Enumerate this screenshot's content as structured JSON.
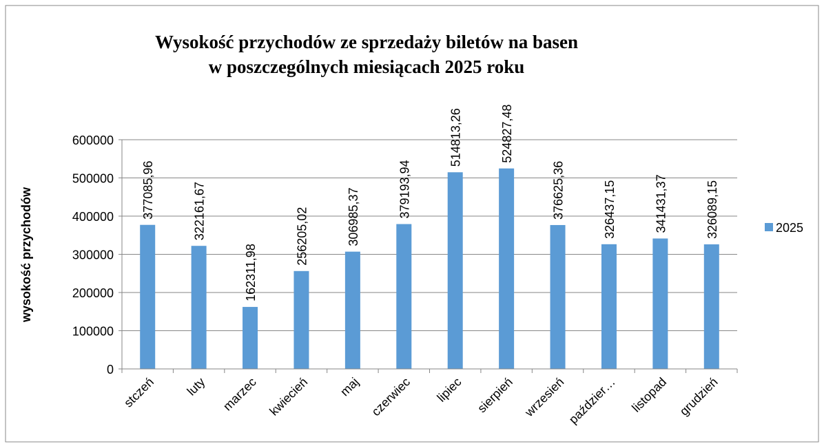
{
  "chart_data": {
    "type": "bar",
    "title": [
      "Wysokość przychodów ze sprzedaży biletów na basen",
      "w poszczególnych miesiącach 2025 roku"
    ],
    "y_label": "wysokość przychodów",
    "categories": [
      "stczeń",
      "luty",
      "marzec",
      "kwiecień",
      "maj",
      "czerwiec",
      "lipiec",
      "sierpień",
      "wrzesień",
      "paździer…",
      "listopad",
      "grudzień"
    ],
    "series": [
      {
        "name": "2025",
        "color": "#5b9bd5",
        "values": [
          377085.96,
          322161.67,
          162311.98,
          256205.02,
          306985.37,
          379193.94,
          514813.26,
          524827.48,
          376625.36,
          326437.15,
          341431.37,
          326089.15
        ],
        "value_labels": [
          "377085,96",
          "322161,67",
          "162311,98",
          "256205,02",
          "306985,37",
          "379193,94",
          "514813,26",
          "524827,48",
          "376625,36",
          "326437,15",
          "341431,37",
          "326089,15"
        ]
      }
    ],
    "ylim": [
      0,
      600000
    ],
    "yticks": [
      0,
      100000,
      200000,
      300000,
      400000,
      500000,
      600000
    ],
    "grid": true,
    "legend": "right"
  }
}
